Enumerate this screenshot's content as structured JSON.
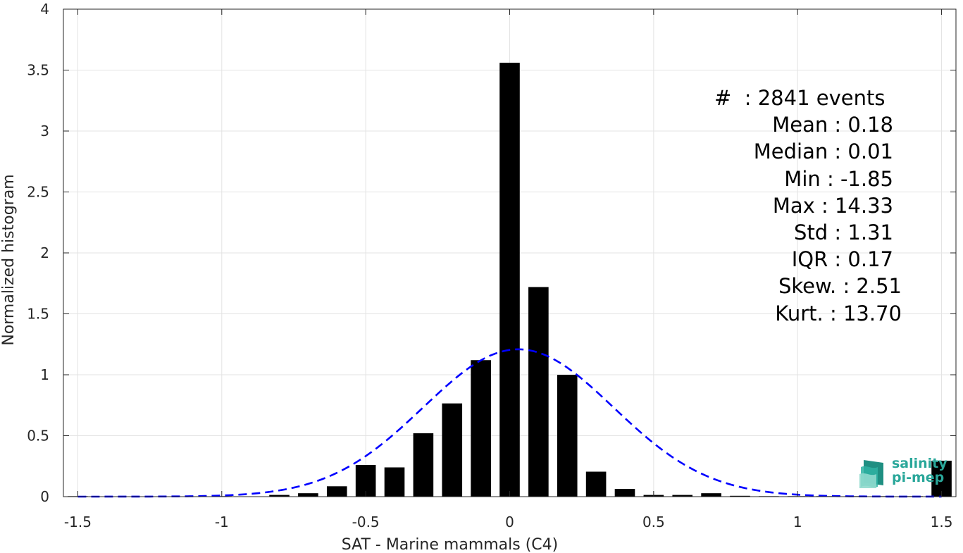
{
  "chart_data": {
    "type": "bar",
    "xlabel": "SAT - Marine mammals (C4)",
    "ylabel": "Normalized histogram",
    "xlim": [
      -1.55,
      1.55
    ],
    "ylim": [
      0,
      4
    ],
    "xticks": [
      -1.5,
      -1,
      -0.5,
      0,
      0.5,
      1,
      1.5
    ],
    "xtick_labels": [
      "-1.5",
      "-1",
      "-0.5",
      "0",
      "0.5",
      "1",
      "1.5"
    ],
    "yticks": [
      0,
      0.5,
      1,
      1.5,
      2,
      2.5,
      3,
      3.5,
      4
    ],
    "ytick_labels": [
      "0",
      "0.5",
      "1",
      "1.5",
      "2",
      "2.5",
      "3",
      "3.5",
      "4"
    ],
    "grid": true,
    "bar_width": 0.07,
    "bars": {
      "x": [
        -1.5,
        -1.4,
        -1.3,
        -1.2,
        -1.1,
        -1.0,
        -0.9,
        -0.8,
        -0.7,
        -0.6,
        -0.5,
        -0.4,
        -0.3,
        -0.2,
        -0.1,
        0.0,
        0.1,
        0.2,
        0.3,
        0.4,
        0.5,
        0.6,
        0.7,
        0.8,
        0.9,
        1.0,
        1.1,
        1.2,
        1.3,
        1.4,
        1.5
      ],
      "values": [
        0.004,
        0.0,
        0.0,
        0.0,
        0.0,
        0.004,
        0.0,
        0.014,
        0.028,
        0.085,
        0.26,
        0.24,
        0.52,
        0.765,
        1.12,
        3.56,
        1.72,
        1.0,
        0.205,
        0.063,
        0.014,
        0.014,
        0.028,
        0.007,
        0.004,
        0.004,
        0.004,
        0.004,
        0.004,
        0.004,
        0.295
      ],
      "color": "#000000"
    },
    "fit": {
      "type": "normal",
      "mean": 0.03,
      "std": 0.33,
      "color": "#0000ff",
      "style": "dashed"
    }
  },
  "stats": [
    "#  : 2841 events",
    "Mean : 0.18",
    "Median : 0.01",
    "Min : -1.85",
    "Max : 14.33",
    "Std : 1.31",
    "IQR : 0.17",
    "Skew. : 2.51",
    "Kurt. : 13.70"
  ],
  "logo": {
    "line1": "salinity",
    "line2": "pi-mep",
    "color": "#2aa79a"
  }
}
